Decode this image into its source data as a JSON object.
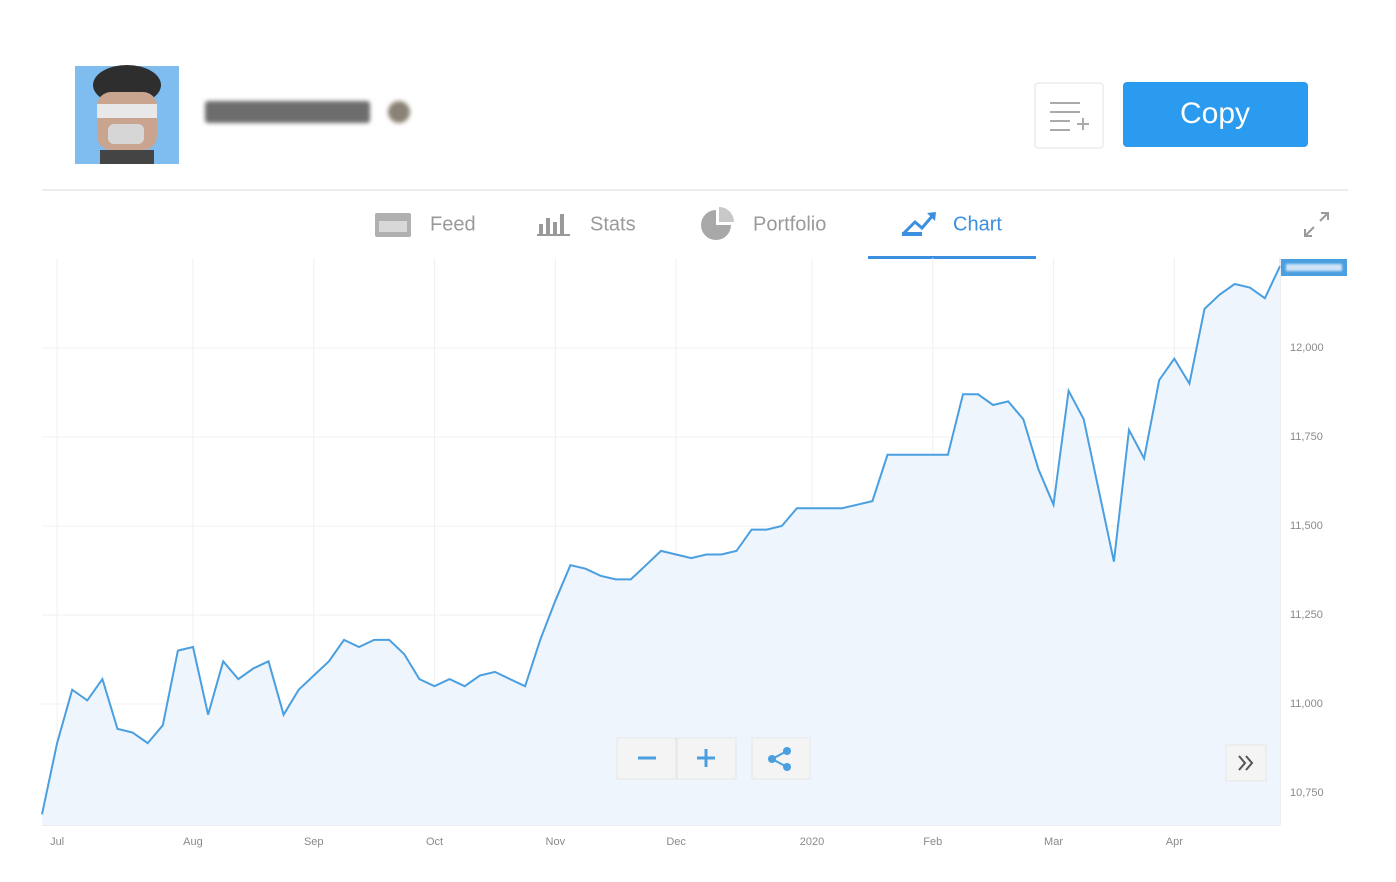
{
  "header": {
    "copy_button": "Copy"
  },
  "tabs": [
    "Feed",
    "Stats",
    "Portfolio",
    "Chart"
  ],
  "active_tab": 3,
  "chart_data": {
    "type": "line",
    "fill": true,
    "color": "#4a9fe0",
    "fill_color": "#eef5fd",
    "grid": true,
    "categories": [
      null,
      "Jul",
      null,
      null,
      null,
      null,
      null,
      null,
      null,
      null,
      "Aug",
      null,
      null,
      null,
      null,
      null,
      null,
      null,
      "Sep",
      null,
      null,
      null,
      null,
      null,
      null,
      null,
      "Oct",
      null,
      null,
      null,
      null,
      null,
      null,
      null,
      "Nov",
      null,
      null,
      null,
      null,
      null,
      null,
      null,
      "Dec",
      null,
      null,
      null,
      null,
      null,
      null,
      null,
      null,
      "2020",
      null,
      null,
      null,
      null,
      null,
      null,
      null,
      "Feb",
      null,
      null,
      null,
      null,
      null,
      null,
      null,
      "Mar",
      null,
      null,
      null,
      null,
      null,
      null,
      null,
      "Apr",
      null,
      null,
      null,
      null,
      null,
      null,
      null
    ],
    "values": [
      10690,
      10890,
      11040,
      11010,
      11070,
      10930,
      10920,
      10890,
      10940,
      11150,
      11160,
      10970,
      11120,
      11070,
      11100,
      11120,
      10970,
      11040,
      11080,
      11120,
      11180,
      11160,
      11180,
      11180,
      11140,
      11070,
      11050,
      11070,
      11050,
      11080,
      11090,
      11070,
      11050,
      11180,
      11290,
      11390,
      11380,
      11360,
      11350,
      11350,
      11390,
      11430,
      11420,
      11410,
      11420,
      11420,
      11430,
      11490,
      11490,
      11500,
      11550,
      11550,
      11550,
      11550,
      11560,
      11570,
      11700,
      11700,
      11700,
      11700,
      11700,
      11870,
      11870,
      11840,
      11850,
      11800,
      11660,
      11560,
      11880,
      11800,
      11600,
      11400,
      11770,
      11690,
      11910,
      11970,
      11900,
      12110,
      12150,
      12180,
      12170,
      12140,
      12230
    ],
    "ylim": [
      10660,
      12253
    ],
    "yticks": [
      {
        "value": 10750,
        "label": "10,750"
      },
      {
        "value": 11000,
        "label": "11,000"
      },
      {
        "value": 11250,
        "label": "11,250"
      },
      {
        "value": 11500,
        "label": "11,500"
      },
      {
        "value": 11750,
        "label": "11,750"
      },
      {
        "value": 12000,
        "label": "12,000"
      }
    ]
  }
}
